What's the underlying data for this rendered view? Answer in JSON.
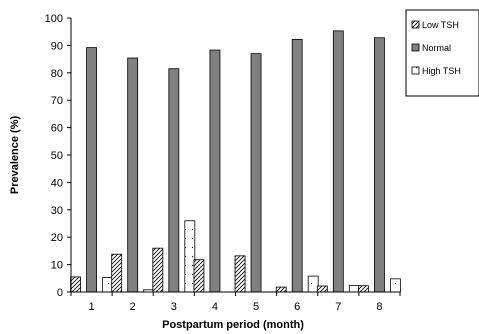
{
  "chart_data": {
    "type": "bar",
    "title": "",
    "xlabel": "Postpartum period (month)",
    "ylabel": "Prevalence (%)",
    "ylim": [
      0,
      100
    ],
    "yticks": [
      0,
      10,
      20,
      30,
      40,
      50,
      60,
      70,
      80,
      90,
      100
    ],
    "categories": [
      "1",
      "2",
      "3",
      "4",
      "5",
      "6",
      "7",
      "8"
    ],
    "legend_position": "top-right",
    "grid": false,
    "series": [
      {
        "name": "Low TSH",
        "values": [
          5.5,
          13.8,
          16,
          11.8,
          13.2,
          1.8,
          2.2,
          2.3
        ],
        "fill": "hatch"
      },
      {
        "name": "Normal",
        "values": [
          89.2,
          85.4,
          81.5,
          88.3,
          87,
          92.2,
          95.3,
          92.8
        ],
        "fill": "#808080"
      },
      {
        "name": "High TSH",
        "values": [
          5.3,
          0.8,
          26,
          0,
          0,
          5.8,
          2.4,
          4.8
        ],
        "fill": "dotted"
      }
    ]
  }
}
